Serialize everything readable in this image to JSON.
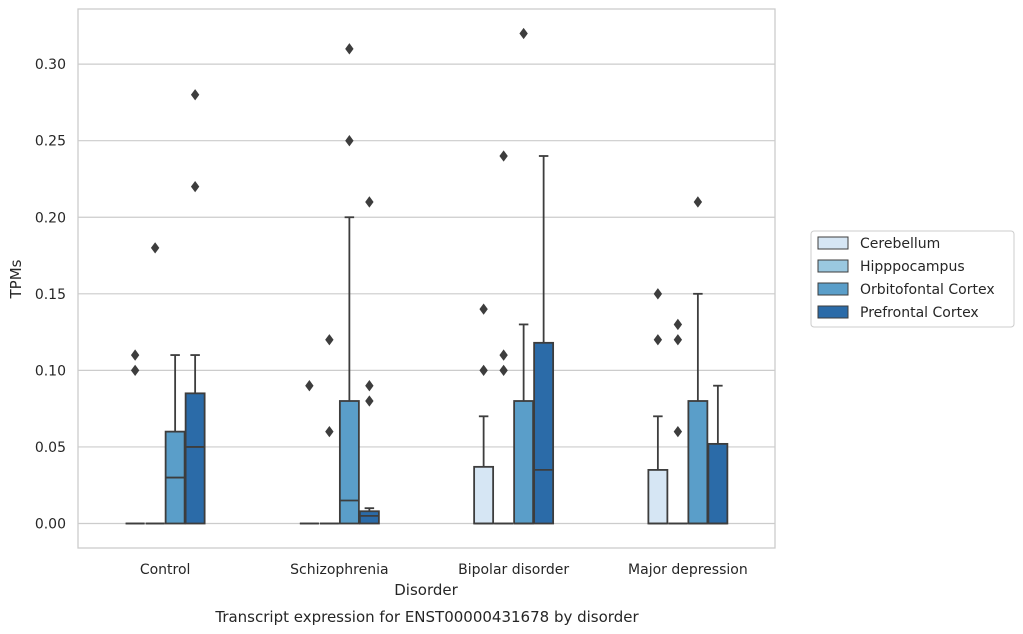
{
  "chart_data": {
    "type": "box",
    "caption": "Transcript expression for ENST00000431678 by disorder",
    "xlabel": "Disorder",
    "ylabel": "TPMs",
    "ylim": [
      -0.016,
      0.336
    ],
    "yticks": [
      "0.00",
      "0.05",
      "0.10",
      "0.15",
      "0.20",
      "0.25",
      "0.30"
    ],
    "categories": [
      "Control",
      "Schizophrenia",
      "Bipolar disorder",
      "Major depression"
    ],
    "grid": true,
    "legend_position": "right",
    "series": [
      {
        "name": "Cerebellum",
        "color": "#d6e6f4",
        "boxes": [
          {
            "q1": 0,
            "median": 0,
            "q3": 0,
            "whisker_low": 0,
            "whisker_high": 0,
            "outliers": [
              0.1,
              0.11
            ]
          },
          {
            "q1": 0,
            "median": 0,
            "q3": 0,
            "whisker_low": 0,
            "whisker_high": 0,
            "outliers": [
              0.09
            ]
          },
          {
            "q1": 0,
            "median": 0,
            "q3": 0.037,
            "whisker_low": 0,
            "whisker_high": 0.07,
            "outliers": [
              0.1,
              0.14
            ]
          },
          {
            "q1": 0,
            "median": 0,
            "q3": 0.035,
            "whisker_low": 0,
            "whisker_high": 0.07,
            "outliers": [
              0.12,
              0.15
            ]
          }
        ]
      },
      {
        "name": "Hipppocampus",
        "color": "#9ac8e0",
        "boxes": [
          {
            "q1": 0,
            "median": 0,
            "q3": 0,
            "whisker_low": 0,
            "whisker_high": 0,
            "outliers": [
              0.18
            ]
          },
          {
            "q1": 0,
            "median": 0,
            "q3": 0,
            "whisker_low": 0,
            "whisker_high": 0,
            "outliers": [
              0.06,
              0.12
            ]
          },
          {
            "q1": 0,
            "median": 0,
            "q3": 0,
            "whisker_low": 0,
            "whisker_high": 0,
            "outliers": [
              0.1,
              0.11,
              0.24
            ]
          },
          {
            "q1": 0,
            "median": 0,
            "q3": 0,
            "whisker_low": 0,
            "whisker_high": 0,
            "outliers": [
              0.06,
              0.12,
              0.13
            ]
          }
        ]
      },
      {
        "name": "Orbitofontal Cortex",
        "color": "#5a9ec9",
        "boxes": [
          {
            "q1": 0,
            "median": 0.03,
            "q3": 0.06,
            "whisker_low": 0,
            "whisker_high": 0.11,
            "outliers": []
          },
          {
            "q1": 0,
            "median": 0.015,
            "q3": 0.08,
            "whisker_low": 0,
            "whisker_high": 0.2,
            "outliers": [
              0.25,
              0.31
            ]
          },
          {
            "q1": 0,
            "median": 0,
            "q3": 0.08,
            "whisker_low": 0,
            "whisker_high": 0.13,
            "outliers": [
              0.32
            ]
          },
          {
            "q1": 0,
            "median": 0,
            "q3": 0.08,
            "whisker_low": 0,
            "whisker_high": 0.15,
            "outliers": [
              0.21
            ]
          }
        ]
      },
      {
        "name": "Prefrontal Cortex",
        "color": "#2b6ba8",
        "boxes": [
          {
            "q1": 0,
            "median": 0.05,
            "q3": 0.085,
            "whisker_low": 0,
            "whisker_high": 0.11,
            "outliers": [
              0.22,
              0.28
            ]
          },
          {
            "q1": 0,
            "median": 0.005,
            "q3": 0.008,
            "whisker_low": 0,
            "whisker_high": 0.01,
            "outliers": [
              0.08,
              0.09,
              0.21
            ]
          },
          {
            "q1": 0,
            "median": 0.035,
            "q3": 0.118,
            "whisker_low": 0,
            "whisker_high": 0.24,
            "outliers": []
          },
          {
            "q1": 0,
            "median": 0,
            "q3": 0.052,
            "whisker_low": 0,
            "whisker_high": 0.09,
            "outliers": []
          }
        ]
      }
    ]
  }
}
